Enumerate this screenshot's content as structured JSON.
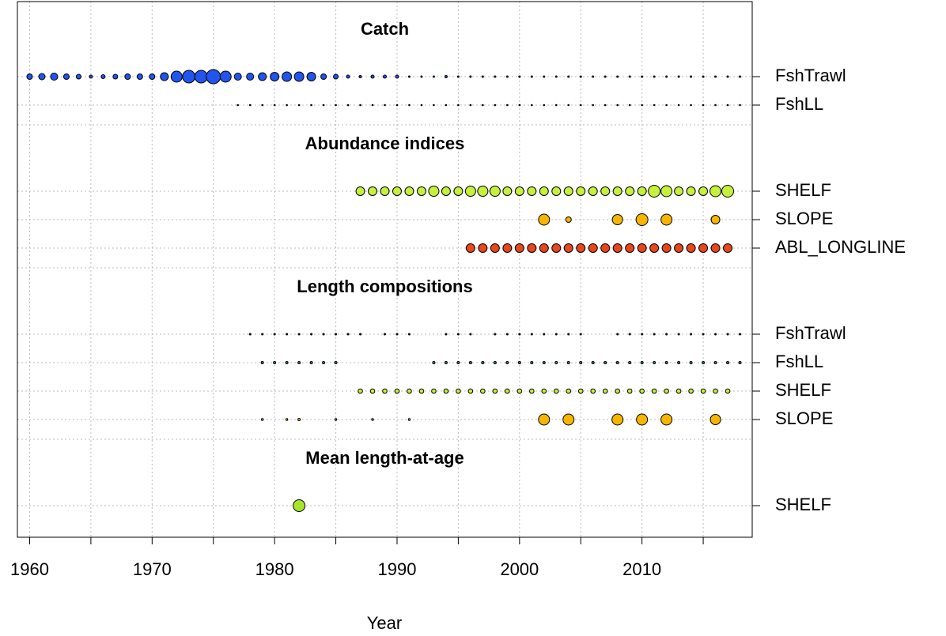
{
  "chart_data": {
    "type": "scatter",
    "x_label": "Year",
    "xlim": [
      1959,
      2019
    ],
    "xticks": [
      1960,
      1970,
      1980,
      1990,
      2000,
      2010
    ],
    "minor_xticks": [
      1965,
      1975,
      1985,
      1995,
      2005,
      2015
    ],
    "grid": true,
    "sections": [
      {
        "title": "Catch",
        "series": [
          {
            "name": "FshTrawl",
            "color": "#2255ee",
            "x": [
              1960,
              1961,
              1962,
              1963,
              1964,
              1965,
              1966,
              1967,
              1968,
              1969,
              1970,
              1971,
              1972,
              1973,
              1974,
              1975,
              1976,
              1977,
              1978,
              1979,
              1980,
              1981,
              1982,
              1983,
              1984,
              1985,
              1986,
              1987,
              1988,
              1989,
              1990,
              1991,
              1992,
              1993,
              1994,
              1995,
              1996,
              1997,
              1998,
              1999,
              2000,
              2001,
              2002,
              2003,
              2004,
              2005,
              2006,
              2007,
              2008,
              2009,
              2010,
              2011,
              2012,
              2013,
              2014,
              2015,
              2016,
              2017,
              2018
            ],
            "values": [
              0.35,
              0.4,
              0.45,
              0.35,
              0.3,
              0.2,
              0.25,
              0.3,
              0.35,
              0.35,
              0.35,
              0.5,
              0.7,
              0.8,
              0.8,
              0.9,
              0.7,
              0.45,
              0.45,
              0.5,
              0.55,
              0.6,
              0.6,
              0.55,
              0.35,
              0.3,
              0.2,
              0.15,
              0.2,
              0.2,
              0.2,
              0.1,
              0.1,
              0.1,
              0.15,
              0.1,
              0.1,
              0.1,
              0.1,
              0.1,
              0.1,
              0.1,
              0.1,
              0.1,
              0.1,
              0.1,
              0.1,
              0.1,
              0.1,
              0.1,
              0.1,
              0.1,
              0.1,
              0.1,
              0.1,
              0.1,
              0.1,
              0.1,
              0.1
            ]
          },
          {
            "name": "FshLL",
            "color": "#1a1a4a",
            "x": [
              1977,
              1978,
              1979,
              1980,
              1981,
              1982,
              1983,
              1984,
              1985,
              1986,
              1987,
              1988,
              1989,
              1990,
              1991,
              1992,
              1993,
              1994,
              1995,
              1996,
              1997,
              1998,
              1999,
              2000,
              2001,
              2002,
              2003,
              2004,
              2005,
              2006,
              2007,
              2008,
              2009,
              2010,
              2011,
              2012,
              2013,
              2014,
              2015,
              2016,
              2017,
              2018
            ],
            "values": [
              0.08,
              0.08,
              0.08,
              0.08,
              0.08,
              0.08,
              0.08,
              0.08,
              0.08,
              0.08,
              0.08,
              0.08,
              0.08,
              0.08,
              0.08,
              0.08,
              0.08,
              0.08,
              0.08,
              0.08,
              0.08,
              0.08,
              0.08,
              0.08,
              0.08,
              0.08,
              0.08,
              0.08,
              0.08,
              0.08,
              0.08,
              0.08,
              0.08,
              0.08,
              0.08,
              0.08,
              0.08,
              0.08,
              0.08,
              0.08,
              0.08,
              0.08
            ]
          }
        ]
      },
      {
        "title": "Abundance indices",
        "series": [
          {
            "name": "SHELF",
            "color": "#c5f03c",
            "x": [
              1987,
              1988,
              1989,
              1990,
              1991,
              1992,
              1993,
              1994,
              1995,
              1996,
              1997,
              1998,
              1999,
              2000,
              2001,
              2002,
              2003,
              2004,
              2005,
              2006,
              2007,
              2008,
              2009,
              2010,
              2011,
              2012,
              2013,
              2014,
              2015,
              2016,
              2017
            ],
            "values": [
              0.55,
              0.55,
              0.55,
              0.55,
              0.55,
              0.55,
              0.65,
              0.55,
              0.55,
              0.65,
              0.65,
              0.65,
              0.55,
              0.55,
              0.55,
              0.55,
              0.55,
              0.55,
              0.55,
              0.55,
              0.55,
              0.55,
              0.55,
              0.55,
              0.75,
              0.7,
              0.55,
              0.55,
              0.55,
              0.7,
              0.75
            ]
          },
          {
            "name": "SLOPE",
            "color": "#f7b500",
            "x": [
              2002,
              2004,
              2008,
              2010,
              2012,
              2016
            ],
            "values": [
              0.7,
              0.35,
              0.65,
              0.75,
              0.7,
              0.55
            ]
          },
          {
            "name": "ABL_LONGLINE",
            "color": "#e8461c",
            "x": [
              1996,
              1997,
              1998,
              1999,
              2000,
              2001,
              2002,
              2003,
              2004,
              2005,
              2006,
              2007,
              2008,
              2009,
              2010,
              2011,
              2012,
              2013,
              2014,
              2015,
              2016,
              2017
            ],
            "values": [
              0.55,
              0.55,
              0.55,
              0.55,
              0.55,
              0.55,
              0.55,
              0.55,
              0.55,
              0.55,
              0.55,
              0.55,
              0.55,
              0.55,
              0.55,
              0.55,
              0.55,
              0.55,
              0.55,
              0.55,
              0.55,
              0.55
            ]
          }
        ]
      },
      {
        "title": "Length compositions",
        "series": [
          {
            "name": "FshTrawl",
            "color": "#1a1a4a",
            "x": [
              1978,
              1979,
              1980,
              1981,
              1982,
              1983,
              1984,
              1985,
              1986,
              1987,
              1989,
              1990,
              1991,
              1994,
              1995,
              1996,
              1998,
              1999,
              2000,
              2001,
              2002,
              2003,
              2004,
              2005,
              2008,
              2009,
              2010,
              2011,
              2012,
              2013,
              2014,
              2015,
              2016,
              2017,
              2018
            ],
            "values": [
              0.1,
              0.1,
              0.1,
              0.1,
              0.1,
              0.1,
              0.1,
              0.1,
              0.1,
              0.1,
              0.1,
              0.1,
              0.1,
              0.1,
              0.1,
              0.1,
              0.1,
              0.1,
              0.1,
              0.1,
              0.1,
              0.1,
              0.1,
              0.1,
              0.1,
              0.1,
              0.1,
              0.1,
              0.1,
              0.1,
              0.1,
              0.1,
              0.1,
              0.1,
              0.1
            ]
          },
          {
            "name": "FshLL",
            "color": "#3a8a78",
            "x": [
              1979,
              1980,
              1981,
              1982,
              1983,
              1984,
              1985,
              1993,
              1994,
              1995,
              1996,
              1997,
              1998,
              1999,
              2000,
              2001,
              2002,
              2003,
              2004,
              2005,
              2006,
              2007,
              2008,
              2009,
              2010,
              2011,
              2012,
              2013,
              2014,
              2015,
              2016,
              2017,
              2018
            ],
            "values": [
              0.15,
              0.15,
              0.15,
              0.15,
              0.15,
              0.15,
              0.15,
              0.15,
              0.15,
              0.15,
              0.15,
              0.15,
              0.15,
              0.15,
              0.15,
              0.15,
              0.15,
              0.15,
              0.15,
              0.15,
              0.15,
              0.15,
              0.15,
              0.15,
              0.15,
              0.15,
              0.15,
              0.15,
              0.15,
              0.15,
              0.15,
              0.15,
              0.15
            ]
          },
          {
            "name": "SHELF",
            "color": "#c5f03c",
            "x": [
              1987,
              1988,
              1989,
              1990,
              1991,
              1992,
              1993,
              1994,
              1995,
              1996,
              1997,
              1998,
              1999,
              2000,
              2001,
              2002,
              2003,
              2004,
              2005,
              2006,
              2007,
              2008,
              2009,
              2010,
              2011,
              2012,
              2013,
              2014,
              2015,
              2016,
              2017
            ],
            "values": [
              0.28,
              0.28,
              0.28,
              0.28,
              0.28,
              0.28,
              0.28,
              0.28,
              0.28,
              0.28,
              0.28,
              0.28,
              0.28,
              0.28,
              0.28,
              0.28,
              0.28,
              0.28,
              0.28,
              0.28,
              0.28,
              0.28,
              0.28,
              0.28,
              0.28,
              0.28,
              0.28,
              0.28,
              0.28,
              0.28,
              0.28
            ]
          },
          {
            "name": "SLOPE",
            "color": "#f7b500",
            "x": [
              1979,
              1981,
              1982,
              1985,
              1988,
              1991,
              2002,
              2004,
              2008,
              2010,
              2012,
              2016
            ],
            "values": [
              0.12,
              0.12,
              0.15,
              0.12,
              0.12,
              0.12,
              0.7,
              0.7,
              0.7,
              0.7,
              0.7,
              0.65
            ]
          }
        ]
      },
      {
        "title": "Mean length-at-age",
        "series": [
          {
            "name": "SHELF",
            "color": "#a6e62a",
            "x": [
              1982
            ],
            "values": [
              0.75
            ]
          }
        ]
      }
    ]
  }
}
